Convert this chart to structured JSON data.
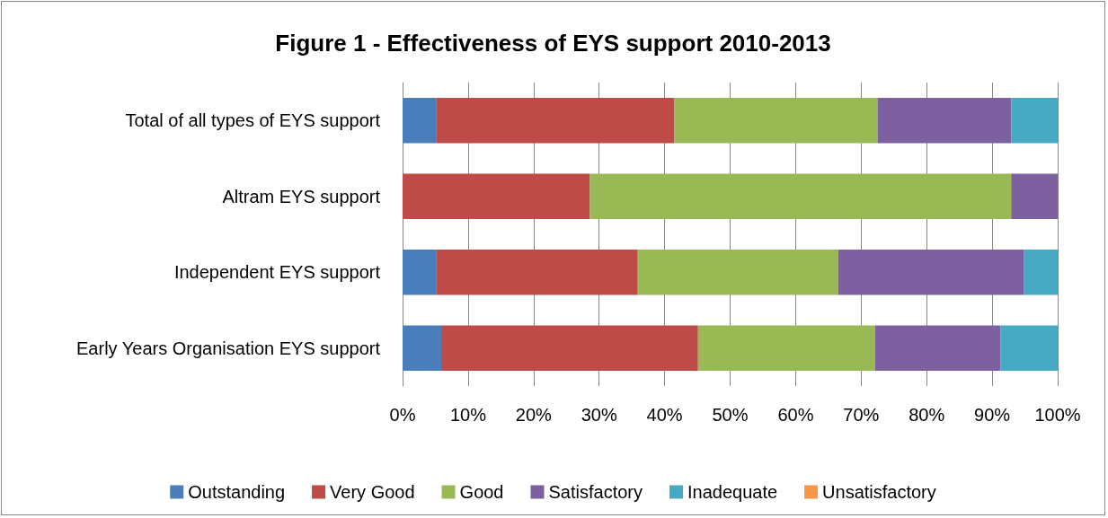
{
  "chart_data": {
    "type": "bar",
    "orientation": "horizontal",
    "stacked": true,
    "title": "Figure 1 - Effectiveness of EYS support 2010-2013",
    "categories": [
      "Total of all types of EYS support",
      "Altram EYS support",
      "Independent EYS support",
      "Early Years Organisation EYS support"
    ],
    "series": [
      {
        "name": "Outstanding",
        "color": "#4a7ebb",
        "values": [
          5.1,
          0,
          5.1,
          5.9
        ]
      },
      {
        "name": "Very Good",
        "color": "#be4b48",
        "values": [
          36.4,
          28.6,
          30.8,
          39.2
        ]
      },
      {
        "name": "Good",
        "color": "#98b954",
        "values": [
          31.0,
          64.3,
          30.6,
          27.0
        ]
      },
      {
        "name": "Satisfactory",
        "color": "#7d60a0",
        "values": [
          20.4,
          7.1,
          28.3,
          19.2
        ]
      },
      {
        "name": "Inadequate",
        "color": "#46aac5",
        "values": [
          7.1,
          0,
          5.2,
          8.7
        ]
      },
      {
        "name": "Unsatisfactory",
        "color": "#f79646",
        "values": [
          0,
          0,
          0,
          0
        ]
      }
    ],
    "xlim": [
      0,
      100
    ],
    "xticks": [
      {
        "value": 0,
        "label": "0%"
      },
      {
        "value": 10,
        "label": "10%"
      },
      {
        "value": 20,
        "label": "20%"
      },
      {
        "value": 30,
        "label": "30%"
      },
      {
        "value": 40,
        "label": "40%"
      },
      {
        "value": 50,
        "label": "50%"
      },
      {
        "value": 60,
        "label": "60%"
      },
      {
        "value": 70,
        "label": "70%"
      },
      {
        "value": 80,
        "label": "80%"
      },
      {
        "value": 90,
        "label": "90%"
      },
      {
        "value": 100,
        "label": "100%"
      }
    ],
    "grid": "x",
    "legend": "bottom"
  }
}
